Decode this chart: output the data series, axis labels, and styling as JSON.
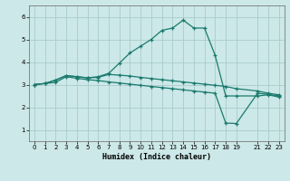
{
  "title": "",
  "xlabel": "Humidex (Indice chaleur)",
  "bg_color": "#cce8e8",
  "grid_color": "#aacccc",
  "line_color": "#1a7a6e",
  "xlim": [
    -0.5,
    23.5
  ],
  "ylim": [
    0.5,
    6.5
  ],
  "xticks": [
    0,
    1,
    2,
    3,
    4,
    5,
    6,
    7,
    8,
    9,
    10,
    11,
    12,
    13,
    14,
    15,
    16,
    17,
    18,
    19,
    21,
    22,
    23
  ],
  "yticks": [
    1,
    2,
    3,
    4,
    5,
    6
  ],
  "line1_x": [
    0,
    1,
    2,
    3,
    4,
    5,
    6,
    7,
    8,
    9,
    10,
    11,
    12,
    13,
    14,
    15,
    16,
    17,
    18,
    19,
    21,
    22,
    23
  ],
  "line1_y": [
    3.0,
    3.05,
    3.2,
    3.4,
    3.35,
    3.3,
    3.35,
    3.5,
    3.95,
    4.4,
    4.7,
    5.0,
    5.4,
    5.5,
    5.85,
    5.5,
    5.5,
    4.3,
    2.5,
    2.5,
    2.5,
    2.55,
    2.45
  ],
  "line2_x": [
    0,
    1,
    2,
    3,
    4,
    5,
    6,
    7,
    8,
    9,
    10,
    11,
    12,
    13,
    14,
    15,
    16,
    17,
    18,
    19,
    21,
    22,
    23
  ],
  "line2_y": [
    3.0,
    3.05,
    3.2,
    3.4,
    3.35,
    3.3,
    3.32,
    3.45,
    3.42,
    3.38,
    3.32,
    3.27,
    3.22,
    3.17,
    3.12,
    3.07,
    3.02,
    2.97,
    2.92,
    2.82,
    2.72,
    2.62,
    2.55
  ],
  "line3_x": [
    0,
    1,
    2,
    3,
    4,
    5,
    6,
    7,
    8,
    9,
    10,
    11,
    12,
    13,
    14,
    15,
    16,
    17,
    18,
    19,
    21,
    22,
    23
  ],
  "line3_y": [
    3.0,
    3.05,
    3.1,
    3.35,
    3.28,
    3.22,
    3.18,
    3.12,
    3.07,
    3.02,
    2.97,
    2.92,
    2.87,
    2.82,
    2.77,
    2.72,
    2.67,
    2.62,
    1.3,
    1.28,
    2.62,
    2.57,
    2.5
  ]
}
